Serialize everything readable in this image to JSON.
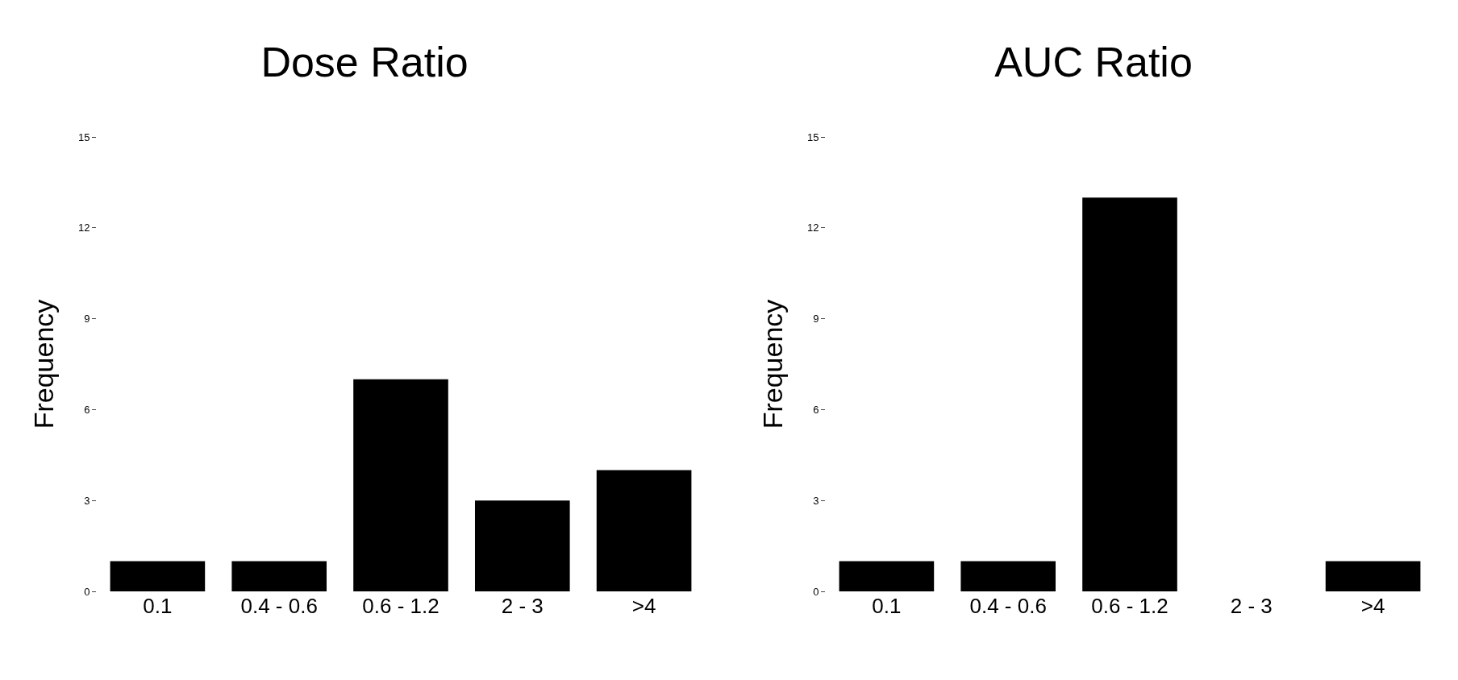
{
  "chart_data": [
    {
      "type": "bar",
      "title": "Dose Ratio",
      "ylabel": "Frequency",
      "categories": [
        "0.1",
        "0.4 - 0.6",
        "0.6 - 1.2",
        "2 - 3",
        ">4"
      ],
      "values": [
        1,
        1,
        7,
        3,
        4
      ],
      "color": "#000000",
      "ylim": [
        0,
        15
      ],
      "yticks": [
        0,
        3,
        6,
        9,
        12,
        15
      ],
      "grid": false
    },
    {
      "type": "bar",
      "title": "AUC Ratio",
      "ylabel": "Frequency",
      "categories": [
        "0.1",
        "0.4 - 0.6",
        "0.6 - 1.2",
        "2 - 3",
        ">4"
      ],
      "values": [
        1,
        1,
        13,
        0,
        1
      ],
      "color": "#000000",
      "ylim": [
        0,
        15
      ],
      "yticks": [
        0,
        3,
        6,
        9,
        12,
        15
      ],
      "grid": false
    }
  ]
}
